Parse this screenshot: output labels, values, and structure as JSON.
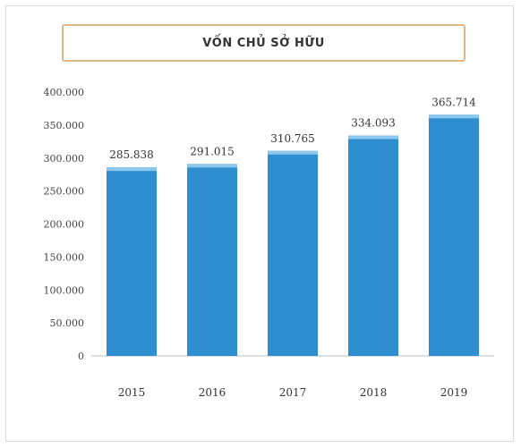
{
  "chart_data": {
    "type": "bar",
    "title": "VỐN CHỦ SỞ HỮU",
    "categories": [
      "2015",
      "2016",
      "2017",
      "2018",
      "2019"
    ],
    "values": [
      285838,
      291015,
      310765,
      334093,
      365714
    ],
    "data_labels": [
      "285.838",
      "291.015",
      "310.765",
      "334.093",
      "365.714"
    ],
    "ylim": [
      0,
      400000
    ],
    "yticks": [
      0,
      50000,
      100000,
      150000,
      200000,
      250000,
      300000,
      350000,
      400000
    ],
    "ytick_labels": [
      "0",
      "50.000",
      "100.000",
      "150.000",
      "200.000",
      "250.000",
      "300.000",
      "350.000",
      "400.000"
    ],
    "xlabel": "",
    "ylabel": "",
    "grid": false,
    "legend": "none",
    "bar_color": "#2f8ecf",
    "bar_top_color": "#8cc7ee"
  }
}
